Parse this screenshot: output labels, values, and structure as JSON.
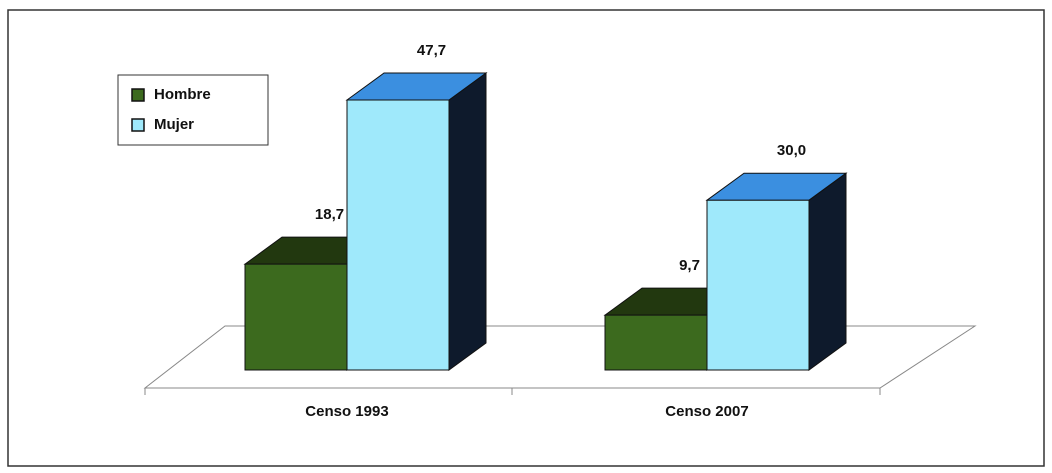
{
  "chart_data": {
    "type": "bar3d",
    "categories": [
      "Censo 1993",
      "Censo 2007"
    ],
    "series": [
      {
        "name": "Hombre",
        "color": "#3c6a1e",
        "top_color": "#22380f",
        "side_color": "#17240c",
        "values": [
          18.7,
          9.7
        ],
        "value_labels": [
          "18,7",
          "9,7"
        ]
      },
      {
        "name": "Mujer",
        "color": "#9fe9fb",
        "top_color": "#3b8fe0",
        "side_color": "#0e1a2c",
        "values": [
          47.7,
          30.0
        ],
        "value_labels": [
          "47,7",
          "30,0"
        ]
      }
    ],
    "legend": "upper left"
  }
}
